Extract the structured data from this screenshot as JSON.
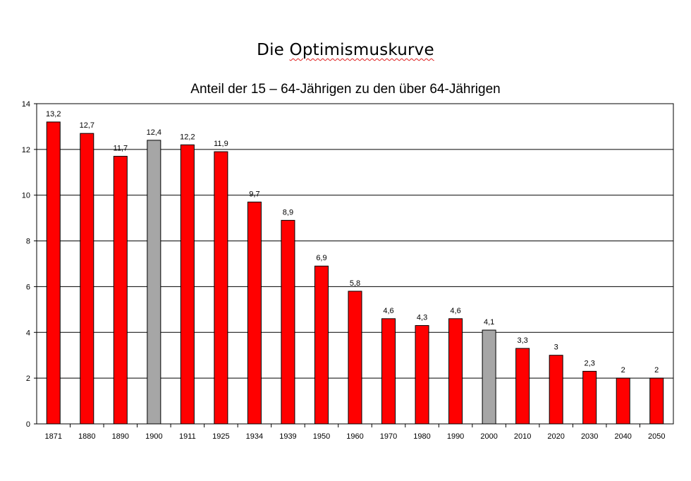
{
  "title_word1": "Die",
  "title_word2": "Optimismuskurve",
  "chart_data": {
    "type": "bar",
    "title": "Anteil der 15 – 64-Jährigen zu den über 64-Jährigen",
    "xlabel": "",
    "ylabel": "",
    "ylim": [
      0,
      14
    ],
    "yticks": [
      0,
      2,
      4,
      6,
      8,
      10,
      12,
      14
    ],
    "grid": true,
    "categories": [
      "1871",
      "1880",
      "1890",
      "1900",
      "1911",
      "1925",
      "1934",
      "1939",
      "1950",
      "1960",
      "1970",
      "1980",
      "1990",
      "2000",
      "2010",
      "2020",
      "2030",
      "2040",
      "2050"
    ],
    "values": [
      13.2,
      12.7,
      11.7,
      12.4,
      12.2,
      11.9,
      9.7,
      8.9,
      6.9,
      5.8,
      4.6,
      4.3,
      4.6,
      4.1,
      3.3,
      3,
      2.3,
      2,
      2
    ],
    "value_labels": [
      "13,2",
      "12,7",
      "11,7",
      "12,4",
      "12,2",
      "11,9",
      "9,7",
      "8,9",
      "6,9",
      "5,8",
      "4,6",
      "4,3",
      "4,6",
      "4,1",
      "3,3",
      "3",
      "2,3",
      "2",
      "2"
    ],
    "highlight_categories": [
      "1900",
      "2000"
    ],
    "colors": {
      "bar": "#ff0000",
      "highlight": "#a6a6a6",
      "grid": "#000000"
    }
  }
}
